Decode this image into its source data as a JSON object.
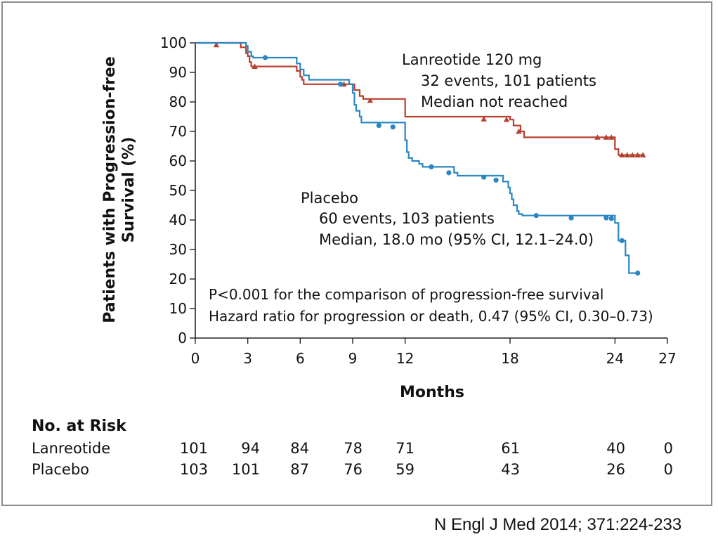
{
  "chart_data": {
    "type": "line",
    "subtype": "kaplan-meier",
    "ylabel_line1": "Patients with Progression-free",
    "ylabel_line2": "Survival (%)",
    "xlabel": "Months",
    "x_ticks": [
      0,
      3,
      6,
      9,
      12,
      18,
      24,
      27
    ],
    "y_ticks": [
      0,
      10,
      20,
      30,
      40,
      50,
      60,
      70,
      80,
      90,
      100
    ],
    "xlim": [
      0,
      27
    ],
    "ylim": [
      0,
      100
    ],
    "series": [
      {
        "name": "Lanreotide",
        "color": "#b5402d",
        "marker": "triangle",
        "steps": [
          [
            0,
            100
          ],
          [
            2.6,
            98.5
          ],
          [
            2.9,
            96.5
          ],
          [
            3.0,
            95.5
          ],
          [
            3.1,
            93.5
          ],
          [
            3.2,
            92
          ],
          [
            5.8,
            90.5
          ],
          [
            6.0,
            88.5
          ],
          [
            6.1,
            87.5
          ],
          [
            6.2,
            86
          ],
          [
            9.1,
            84
          ],
          [
            9.4,
            82
          ],
          [
            9.6,
            81
          ],
          [
            12.0,
            75
          ],
          [
            18.0,
            74
          ],
          [
            18.2,
            72
          ],
          [
            18.6,
            70
          ],
          [
            18.8,
            68
          ],
          [
            24.0,
            64
          ],
          [
            24.2,
            62
          ]
        ],
        "end_x": 25.7,
        "censored": [
          [
            1.2,
            99.3
          ],
          [
            3.4,
            92
          ],
          [
            8.5,
            86
          ],
          [
            10,
            80.5
          ],
          [
            16.5,
            74.2
          ],
          [
            17.8,
            74
          ],
          [
            18.5,
            70
          ],
          [
            23,
            68
          ],
          [
            23.5,
            68
          ],
          [
            23.8,
            68
          ],
          [
            24.4,
            62
          ],
          [
            24.7,
            62
          ],
          [
            25.0,
            62
          ],
          [
            25.3,
            62
          ],
          [
            25.6,
            62
          ]
        ]
      },
      {
        "name": "Placebo",
        "color": "#2a87c1",
        "marker": "circle",
        "steps": [
          [
            0,
            100
          ],
          [
            2.9,
            99
          ],
          [
            3.0,
            97
          ],
          [
            3.2,
            95.5
          ],
          [
            3.3,
            95
          ],
          [
            5.8,
            93
          ],
          [
            6.0,
            91
          ],
          [
            6.2,
            89
          ],
          [
            6.5,
            87.5
          ],
          [
            8.8,
            86
          ],
          [
            9.0,
            83
          ],
          [
            9.1,
            79
          ],
          [
            9.2,
            77
          ],
          [
            9.4,
            75
          ],
          [
            9.5,
            73
          ],
          [
            12.0,
            67
          ],
          [
            12.1,
            63
          ],
          [
            12.2,
            61
          ],
          [
            12.4,
            60
          ],
          [
            12.8,
            59
          ],
          [
            13.0,
            58
          ],
          [
            14.8,
            56
          ],
          [
            15.0,
            55
          ],
          [
            17.6,
            53
          ],
          [
            17.9,
            51
          ],
          [
            18.0,
            49
          ],
          [
            18.1,
            47
          ],
          [
            18.2,
            45
          ],
          [
            18.4,
            43
          ],
          [
            18.5,
            42
          ],
          [
            18.7,
            41.5
          ],
          [
            24.0,
            39
          ],
          [
            24.2,
            33
          ],
          [
            24.6,
            28
          ],
          [
            24.8,
            22
          ]
        ],
        "end_x": 25.4,
        "censored": [
          [
            4.0,
            95
          ],
          [
            8.3,
            86
          ],
          [
            10.5,
            72
          ],
          [
            11.3,
            71.5
          ],
          [
            13.5,
            58
          ],
          [
            14.5,
            56
          ],
          [
            16.5,
            54.5
          ],
          [
            17.2,
            53.5
          ],
          [
            19.5,
            41.5
          ],
          [
            21.5,
            40.7
          ],
          [
            23.5,
            40.7
          ],
          [
            23.8,
            40.5
          ],
          [
            24.4,
            33
          ],
          [
            25.3,
            22
          ]
        ]
      }
    ]
  },
  "annotations": {
    "lanreotide_name": "Lanreotide 120 mg",
    "lanreotide_events": "32 events, 101 patients",
    "lanreotide_median": "Median not reached",
    "placebo_name": "Placebo",
    "placebo_events": "60 events, 103 patients",
    "placebo_median": "Median, 18.0 mo (95% CI, 12.1–24.0)",
    "p_value": "P<0.001 for the comparison of progression-free survival",
    "hazard_ratio": "Hazard ratio for progression or death, 0.47 (95% CI, 0.30–0.73)"
  },
  "risk_table": {
    "title": "No. at Risk",
    "rows": [
      {
        "label": "Lanreotide",
        "values": [
          "101",
          "94",
          "84",
          "78",
          "71",
          "61",
          "40",
          "0"
        ]
      },
      {
        "label": "Placebo",
        "values": [
          "103",
          "101",
          "87",
          "76",
          "59",
          "43",
          "26",
          "0"
        ]
      }
    ]
  },
  "citation": "N Engl J Med 2014; 371:224-233"
}
